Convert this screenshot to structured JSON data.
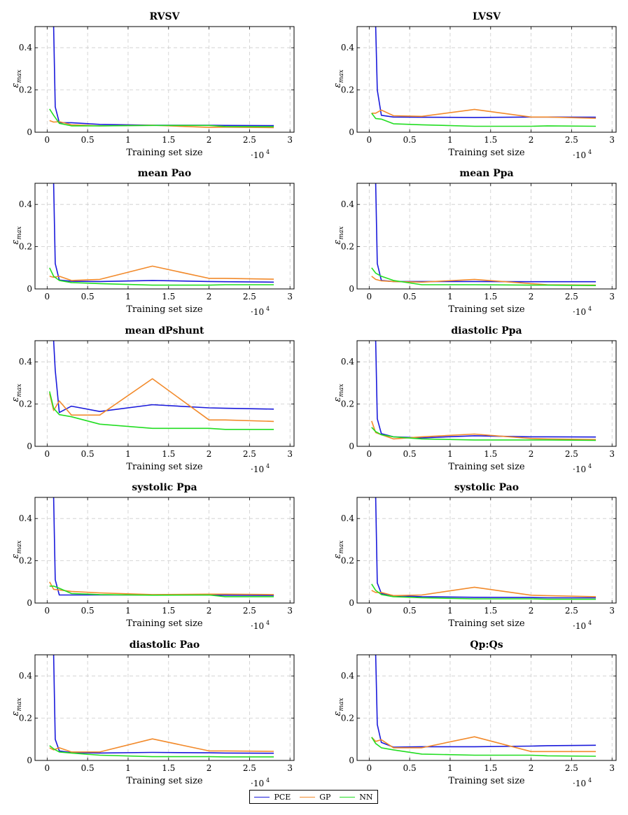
{
  "legend": [
    {
      "name": "PCE",
      "color": "#1a1adb"
    },
    {
      "name": "GP",
      "color": "#f28a2b"
    },
    {
      "name": "NN",
      "color": "#22dd22"
    }
  ],
  "chart_data": [
    {
      "type": "line",
      "title": "RVSV",
      "xlabel": "Training set size",
      "ylabel": "ε",
      "ylabel_sub": "max",
      "x_exponent_label": "·10",
      "x_exponent": "4",
      "xlim": [
        -0.15,
        3.05
      ],
      "ylim": [
        0,
        0.5
      ],
      "xticks": [
        0,
        0.5,
        1,
        1.5,
        2,
        2.5,
        3
      ],
      "yticks": [
        0,
        0.2,
        0.4
      ],
      "grid": true,
      "series": [
        {
          "name": "PCE",
          "x": [
            0.08,
            0.1,
            0.15,
            0.3,
            0.65,
            1.3,
            2.0,
            2.2,
            2.8
          ],
          "y": [
            0.5,
            0.12,
            0.045,
            0.045,
            0.037,
            0.033,
            0.033,
            0.032,
            0.031
          ]
        },
        {
          "name": "GP",
          "x": [
            0.03,
            0.08,
            0.15,
            0.3,
            0.65,
            1.3,
            2.0,
            2.2,
            2.8
          ],
          "y": [
            0.055,
            0.048,
            0.05,
            0.035,
            0.03,
            0.033,
            0.023,
            0.024,
            0.022
          ]
        },
        {
          "name": "NN",
          "x": [
            0.03,
            0.08,
            0.15,
            0.3,
            0.65,
            1.3,
            2.0,
            2.2,
            2.8
          ],
          "y": [
            0.11,
            0.08,
            0.042,
            0.03,
            0.03,
            0.032,
            0.032,
            0.027,
            0.026
          ]
        }
      ]
    },
    {
      "type": "line",
      "title": "LVSV",
      "xlabel": "Training set size",
      "ylabel": "ε",
      "ylabel_sub": "max",
      "x_exponent_label": "·10",
      "x_exponent": "4",
      "xlim": [
        -0.15,
        3.05
      ],
      "ylim": [
        0,
        0.5
      ],
      "xticks": [
        0,
        0.5,
        1,
        1.5,
        2,
        2.5,
        3
      ],
      "yticks": [
        0,
        0.2,
        0.4
      ],
      "grid": true,
      "series": [
        {
          "name": "PCE",
          "x": [
            0.08,
            0.1,
            0.15,
            0.3,
            0.65,
            1.3,
            2.0,
            2.2,
            2.8
          ],
          "y": [
            0.5,
            0.2,
            0.08,
            0.072,
            0.071,
            0.07,
            0.072,
            0.072,
            0.071
          ]
        },
        {
          "name": "GP",
          "x": [
            0.03,
            0.08,
            0.15,
            0.3,
            0.65,
            1.3,
            2.0,
            2.2,
            2.8
          ],
          "y": [
            0.09,
            0.09,
            0.105,
            0.078,
            0.075,
            0.108,
            0.072,
            0.072,
            0.066
          ]
        },
        {
          "name": "NN",
          "x": [
            0.03,
            0.08,
            0.15,
            0.3,
            0.65,
            1.3,
            2.0,
            2.2,
            2.8
          ],
          "y": [
            0.09,
            0.065,
            0.062,
            0.04,
            0.035,
            0.028,
            0.028,
            0.03,
            0.028
          ]
        }
      ]
    },
    {
      "type": "line",
      "title": "mean Pao",
      "xlabel": "Training set size",
      "ylabel": "ε",
      "ylabel_sub": "max",
      "x_exponent_label": "·10",
      "x_exponent": "4",
      "xlim": [
        -0.15,
        3.05
      ],
      "ylim": [
        0,
        0.5
      ],
      "xticks": [
        0,
        0.5,
        1,
        1.5,
        2,
        2.5,
        3
      ],
      "yticks": [
        0,
        0.2,
        0.4
      ],
      "grid": true,
      "series": [
        {
          "name": "PCE",
          "x": [
            0.08,
            0.1,
            0.15,
            0.3,
            0.65,
            1.3,
            2.0,
            2.2,
            2.8
          ],
          "y": [
            0.5,
            0.12,
            0.042,
            0.036,
            0.035,
            0.04,
            0.035,
            0.034,
            0.032
          ]
        },
        {
          "name": "GP",
          "x": [
            0.03,
            0.08,
            0.15,
            0.3,
            0.65,
            1.3,
            2.0,
            2.2,
            2.8
          ],
          "y": [
            0.06,
            0.055,
            0.06,
            0.04,
            0.045,
            0.108,
            0.05,
            0.05,
            0.046
          ]
        },
        {
          "name": "NN",
          "x": [
            0.03,
            0.08,
            0.15,
            0.3,
            0.65,
            1.3,
            2.0,
            2.2,
            2.8
          ],
          "y": [
            0.1,
            0.06,
            0.04,
            0.03,
            0.025,
            0.018,
            0.018,
            0.02,
            0.02
          ]
        }
      ]
    },
    {
      "type": "line",
      "title": "mean Ppa",
      "xlabel": "Training set size",
      "ylabel": "ε",
      "ylabel_sub": "max",
      "x_exponent_label": "·10",
      "x_exponent": "4",
      "xlim": [
        -0.15,
        3.05
      ],
      "ylim": [
        0,
        0.5
      ],
      "xticks": [
        0,
        0.5,
        1,
        1.5,
        2,
        2.5,
        3
      ],
      "yticks": [
        0,
        0.2,
        0.4
      ],
      "grid": true,
      "series": [
        {
          "name": "PCE",
          "x": [
            0.08,
            0.1,
            0.15,
            0.3,
            0.65,
            1.3,
            2.0,
            2.2,
            2.8
          ],
          "y": [
            0.5,
            0.12,
            0.04,
            0.035,
            0.035,
            0.035,
            0.034,
            0.034,
            0.034
          ]
        },
        {
          "name": "GP",
          "x": [
            0.03,
            0.08,
            0.15,
            0.3,
            0.65,
            1.3,
            2.0,
            2.2,
            2.8
          ],
          "y": [
            0.06,
            0.045,
            0.038,
            0.035,
            0.032,
            0.045,
            0.025,
            0.02,
            0.018
          ]
        },
        {
          "name": "NN",
          "x": [
            0.03,
            0.08,
            0.15,
            0.3,
            0.65,
            1.3,
            2.0,
            2.2,
            2.8
          ],
          "y": [
            0.1,
            0.075,
            0.06,
            0.04,
            0.02,
            0.02,
            0.018,
            0.018,
            0.016
          ]
        }
      ]
    },
    {
      "type": "line",
      "title": "mean dPshunt",
      "xlabel": "Training set size",
      "ylabel": "ε",
      "ylabel_sub": "max",
      "x_exponent_label": "·10",
      "x_exponent": "4",
      "xlim": [
        -0.15,
        3.05
      ],
      "ylim": [
        0,
        0.5
      ],
      "xticks": [
        0,
        0.5,
        1,
        1.5,
        2,
        2.5,
        3
      ],
      "yticks": [
        0,
        0.2,
        0.4
      ],
      "grid": true,
      "series": [
        {
          "name": "PCE",
          "x": [
            0.08,
            0.1,
            0.15,
            0.3,
            0.65,
            1.3,
            2.0,
            2.2,
            2.8
          ],
          "y": [
            0.5,
            0.36,
            0.16,
            0.19,
            0.165,
            0.197,
            0.182,
            0.18,
            0.176
          ]
        },
        {
          "name": "GP",
          "x": [
            0.03,
            0.08,
            0.15,
            0.3,
            0.65,
            1.3,
            2.0,
            2.2,
            2.8
          ],
          "y": [
            0.25,
            0.17,
            0.215,
            0.148,
            0.148,
            0.32,
            0.125,
            0.125,
            0.118
          ]
        },
        {
          "name": "NN",
          "x": [
            0.03,
            0.08,
            0.15,
            0.3,
            0.65,
            1.3,
            2.0,
            2.2,
            2.8
          ],
          "y": [
            0.26,
            0.18,
            0.15,
            0.14,
            0.105,
            0.085,
            0.085,
            0.08,
            0.08
          ]
        }
      ]
    },
    {
      "type": "line",
      "title": "diastolic Ppa",
      "xlabel": "Training set size",
      "ylabel": "ε",
      "ylabel_sub": "max",
      "x_exponent_label": "·10",
      "x_exponent": "4",
      "xlim": [
        -0.15,
        3.05
      ],
      "ylim": [
        0,
        0.5
      ],
      "xticks": [
        0,
        0.5,
        1,
        1.5,
        2,
        2.5,
        3
      ],
      "yticks": [
        0,
        0.2,
        0.4
      ],
      "grid": true,
      "series": [
        {
          "name": "PCE",
          "x": [
            0.08,
            0.1,
            0.15,
            0.3,
            0.65,
            1.3,
            2.0,
            2.2,
            2.8
          ],
          "y": [
            0.5,
            0.13,
            0.06,
            0.045,
            0.04,
            0.05,
            0.045,
            0.045,
            0.044
          ]
        },
        {
          "name": "GP",
          "x": [
            0.03,
            0.08,
            0.15,
            0.3,
            0.65,
            1.3,
            2.0,
            2.2,
            2.8
          ],
          "y": [
            0.12,
            0.065,
            0.055,
            0.035,
            0.045,
            0.058,
            0.037,
            0.035,
            0.032
          ]
        },
        {
          "name": "NN",
          "x": [
            0.03,
            0.08,
            0.15,
            0.3,
            0.65,
            1.3,
            2.0,
            2.2,
            2.8
          ],
          "y": [
            0.09,
            0.07,
            0.055,
            0.045,
            0.035,
            0.03,
            0.03,
            0.03,
            0.028
          ]
        }
      ]
    },
    {
      "type": "line",
      "title": "systolic Ppa",
      "xlabel": "Training set size",
      "ylabel": "ε",
      "ylabel_sub": "max",
      "x_exponent_label": "·10",
      "x_exponent": "4",
      "xlim": [
        -0.15,
        3.05
      ],
      "ylim": [
        0,
        0.5
      ],
      "xticks": [
        0,
        0.5,
        1,
        1.5,
        2,
        2.5,
        3
      ],
      "yticks": [
        0,
        0.2,
        0.4
      ],
      "grid": true,
      "series": [
        {
          "name": "PCE",
          "x": [
            0.08,
            0.1,
            0.15,
            0.3,
            0.65,
            1.3,
            2.0,
            2.2,
            2.8
          ],
          "y": [
            0.5,
            0.11,
            0.038,
            0.038,
            0.038,
            0.038,
            0.038,
            0.037,
            0.036
          ]
        },
        {
          "name": "GP",
          "x": [
            0.03,
            0.08,
            0.15,
            0.3,
            0.65,
            1.3,
            2.0,
            2.2,
            2.8
          ],
          "y": [
            0.1,
            0.065,
            0.062,
            0.055,
            0.048,
            0.04,
            0.042,
            0.042,
            0.04
          ]
        },
        {
          "name": "NN",
          "x": [
            0.03,
            0.08,
            0.15,
            0.3,
            0.65,
            1.3,
            2.0,
            2.2,
            2.8
          ],
          "y": [
            0.08,
            0.08,
            0.07,
            0.045,
            0.04,
            0.037,
            0.038,
            0.03,
            0.03
          ]
        }
      ]
    },
    {
      "type": "line",
      "title": "systolic Pao",
      "xlabel": "Training set size",
      "ylabel": "ε",
      "ylabel_sub": "max",
      "x_exponent_label": "·10",
      "x_exponent": "4",
      "xlim": [
        -0.15,
        3.05
      ],
      "ylim": [
        0,
        0.5
      ],
      "xticks": [
        0,
        0.5,
        1,
        1.5,
        2,
        2.5,
        3
      ],
      "yticks": [
        0,
        0.2,
        0.4
      ],
      "grid": true,
      "series": [
        {
          "name": "PCE",
          "x": [
            0.08,
            0.1,
            0.15,
            0.3,
            0.65,
            1.3,
            2.0,
            2.2,
            2.8
          ],
          "y": [
            0.5,
            0.095,
            0.045,
            0.035,
            0.03,
            0.027,
            0.026,
            0.025,
            0.025
          ]
        },
        {
          "name": "GP",
          "x": [
            0.03,
            0.08,
            0.15,
            0.3,
            0.65,
            1.3,
            2.0,
            2.2,
            2.8
          ],
          "y": [
            0.06,
            0.05,
            0.05,
            0.035,
            0.038,
            0.075,
            0.037,
            0.035,
            0.03
          ]
        },
        {
          "name": "NN",
          "x": [
            0.03,
            0.08,
            0.15,
            0.3,
            0.65,
            1.3,
            2.0,
            2.2,
            2.8
          ],
          "y": [
            0.09,
            0.06,
            0.04,
            0.03,
            0.025,
            0.02,
            0.02,
            0.018,
            0.018
          ]
        }
      ]
    },
    {
      "type": "line",
      "title": "diastolic Pao",
      "xlabel": "Training set size",
      "ylabel": "ε",
      "ylabel_sub": "max",
      "x_exponent_label": "·10",
      "x_exponent": "4",
      "xlim": [
        -0.15,
        3.05
      ],
      "ylim": [
        0,
        0.5
      ],
      "xticks": [
        0,
        0.5,
        1,
        1.5,
        2,
        2.5,
        3
      ],
      "yticks": [
        0,
        0.2,
        0.4
      ],
      "grid": true,
      "series": [
        {
          "name": "PCE",
          "x": [
            0.08,
            0.1,
            0.15,
            0.3,
            0.65,
            1.3,
            2.0,
            2.2,
            2.8
          ],
          "y": [
            0.5,
            0.1,
            0.045,
            0.037,
            0.035,
            0.038,
            0.036,
            0.035,
            0.034
          ]
        },
        {
          "name": "GP",
          "x": [
            0.03,
            0.08,
            0.15,
            0.3,
            0.65,
            1.3,
            2.0,
            2.2,
            2.8
          ],
          "y": [
            0.06,
            0.05,
            0.06,
            0.04,
            0.04,
            0.102,
            0.045,
            0.045,
            0.043
          ]
        },
        {
          "name": "NN",
          "x": [
            0.03,
            0.08,
            0.15,
            0.3,
            0.65,
            1.3,
            2.0,
            2.2,
            2.8
          ],
          "y": [
            0.07,
            0.055,
            0.04,
            0.035,
            0.025,
            0.018,
            0.018,
            0.017,
            0.017
          ]
        }
      ]
    },
    {
      "type": "line",
      "title": "Qp:Qs",
      "xlabel": "Training set size",
      "ylabel": "ε",
      "ylabel_sub": "max",
      "x_exponent_label": "·10",
      "x_exponent": "4",
      "xlim": [
        -0.15,
        3.05
      ],
      "ylim": [
        0,
        0.5
      ],
      "xticks": [
        0,
        0.5,
        1,
        1.5,
        2,
        2.5,
        3
      ],
      "yticks": [
        0,
        0.2,
        0.4
      ],
      "grid": true,
      "series": [
        {
          "name": "PCE",
          "x": [
            0.08,
            0.1,
            0.15,
            0.3,
            0.65,
            1.3,
            2.0,
            2.2,
            2.8
          ],
          "y": [
            0.5,
            0.17,
            0.085,
            0.063,
            0.065,
            0.065,
            0.068,
            0.07,
            0.072
          ]
        },
        {
          "name": "GP",
          "x": [
            0.03,
            0.08,
            0.15,
            0.3,
            0.65,
            1.3,
            2.0,
            2.2,
            2.8
          ],
          "y": [
            0.11,
            0.09,
            0.098,
            0.06,
            0.06,
            0.112,
            0.042,
            0.042,
            0.042
          ]
        },
        {
          "name": "NN",
          "x": [
            0.03,
            0.08,
            0.15,
            0.3,
            0.65,
            1.3,
            2.0,
            2.2,
            2.8
          ],
          "y": [
            0.11,
            0.08,
            0.06,
            0.05,
            0.03,
            0.025,
            0.025,
            0.022,
            0.02
          ]
        }
      ]
    }
  ]
}
